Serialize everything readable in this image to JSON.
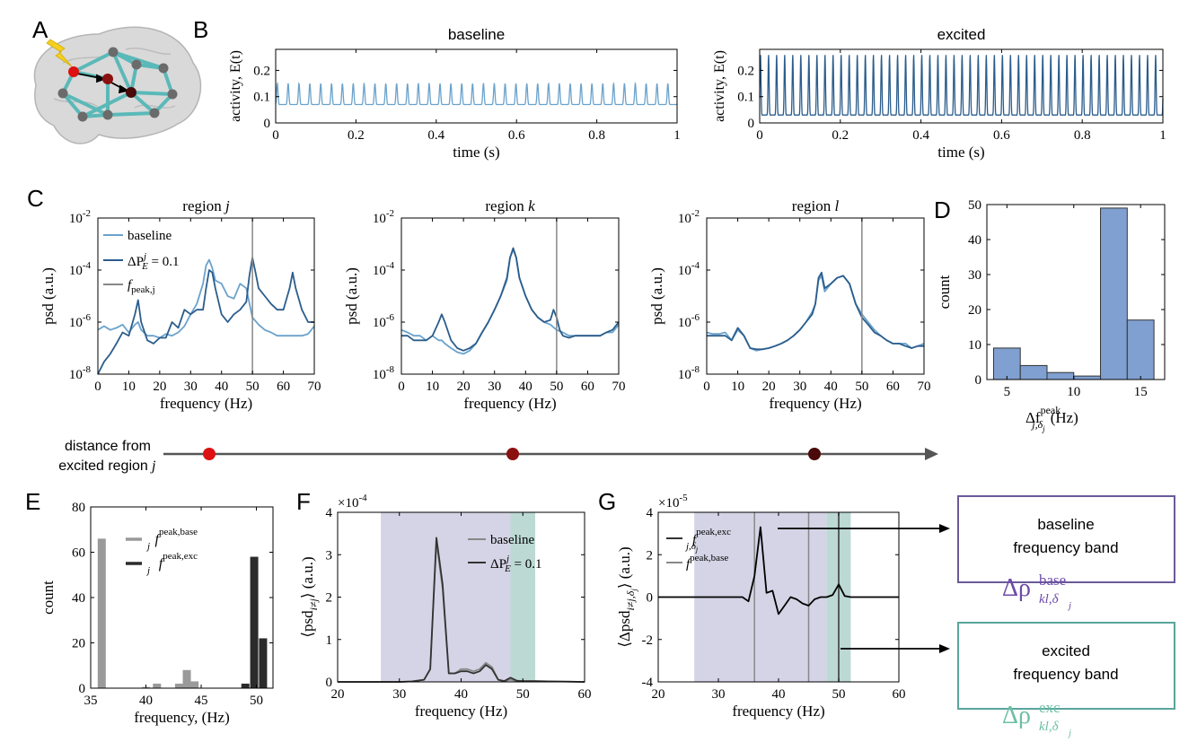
{
  "panel_letters": {
    "A": "A",
    "B": "B",
    "C": "C",
    "D": "D",
    "E": "E",
    "F": "F",
    "G": "G"
  },
  "colors": {
    "light_blue": "#6aa2cc",
    "dark_blue": "#2b5d8c",
    "gray_line": "#888888",
    "brain": "#d9d9d9",
    "network_edge": "#5ab9b8",
    "node_gray": "#6b6b6b",
    "node_red": "#dd1111",
    "node_darkred": "#8b1010",
    "node_darkest": "#4a0a0a",
    "bar_blue": "#7fa0d0",
    "bar_lightgray": "#9a9a9a",
    "bar_dark": "#2b2b2b",
    "band_base": "#d4d4e6",
    "band_exc": "#bcd9d4",
    "purple": "#6c4ba8",
    "teal": "#6dbfa4",
    "box_purple": "#6a5a98",
    "box_teal": "#5aa59c",
    "lightning": "#f5d021"
  },
  "axis_distance": {
    "label_line1": "distance from",
    "label_line2": "excited region",
    "label_j": "j"
  },
  "boxes": {
    "baseline": {
      "line1": "baseline",
      "line2": "frequency band",
      "symbol": "Δρ",
      "sup": "base",
      "sub": "kl,δ",
      "subsub": "j"
    },
    "excited": {
      "line1": "excited",
      "line2": "frequency band",
      "symbol": "Δρ",
      "sup": "exc",
      "sub": "kl,δ",
      "subsub": "j"
    }
  },
  "chart_data": [
    {
      "id": "B-baseline",
      "type": "line",
      "title": "baseline",
      "xlabel": "time (s)",
      "ylabel": "activity, E(t)",
      "xlim": [
        0,
        1
      ],
      "ylim": [
        0,
        0.28
      ],
      "xticks": [
        "0",
        "0.2",
        "0.4",
        "0.6",
        "0.8",
        "1"
      ],
      "yticks": [
        "0",
        "0.1",
        "0.2"
      ],
      "series": [
        {
          "oscillation": {
            "frequency_hz": 37,
            "min": 0.07,
            "max": 0.15
          }
        }
      ]
    },
    {
      "id": "B-excited",
      "type": "line",
      "title": "excited",
      "xlabel": "time (s)",
      "ylabel": "activity, E(t)",
      "xlim": [
        0,
        1
      ],
      "ylim": [
        0,
        0.28
      ],
      "xticks": [
        "0",
        "0.2",
        "0.4",
        "0.6",
        "0.8",
        "1"
      ],
      "yticks": [
        "0",
        "0.1",
        "0.2"
      ],
      "series": [
        {
          "oscillation": {
            "frequency_hz": 50,
            "min": 0.03,
            "max": 0.26
          }
        }
      ]
    },
    {
      "id": "C-j",
      "type": "line",
      "title": "region",
      "title_var": "j",
      "xlabel": "frequency (Hz)",
      "ylabel": "psd (a.u.)",
      "yscale": "log",
      "xlim": [
        0,
        70
      ],
      "ylim": [
        1e-08,
        0.01
      ],
      "xticks": [
        "0",
        "10",
        "20",
        "30",
        "40",
        "50",
        "60",
        "70"
      ],
      "yticks": [
        "-8",
        "-6",
        "-4",
        "-2"
      ],
      "vline": 50,
      "legend": {
        "placement": "top-left",
        "baseline": "baseline",
        "excited_main": "ΔP",
        "excited_sup": "j",
        "excited_sub": "E",
        "excited_val": "= 0.1",
        "peak_main": "f",
        "peak_sub": "peak,j"
      },
      "series": [
        {
          "name": "baseline",
          "x": [
            0,
            2,
            4,
            6,
            8,
            10,
            12,
            13,
            14,
            16,
            18,
            20,
            22,
            24,
            26,
            28,
            30,
            32,
            34,
            35,
            36,
            37,
            38,
            40,
            42,
            44,
            46,
            48,
            50,
            52,
            54,
            56,
            58,
            60,
            62,
            64,
            66,
            68,
            70
          ],
          "y": [
            5e-07,
            7e-07,
            5e-07,
            6e-07,
            8e-07,
            4e-07,
            8e-07,
            1e-06,
            5e-07,
            3e-07,
            3e-07,
            2.5e-07,
            3.5e-07,
            3e-07,
            4e-07,
            7e-07,
            2e-06,
            5e-06,
            3e-05,
            0.00015,
            0.00025,
            0.00012,
            4e-05,
            3e-05,
            1e-05,
            8e-06,
            3e-05,
            2e-05,
            1.5e-06,
            8e-07,
            5e-07,
            4e-07,
            3e-07,
            3e-07,
            3e-07,
            3e-07,
            3e-07,
            3.5e-07,
            7e-07
          ]
        },
        {
          "name": "excited",
          "x": [
            0,
            2,
            4,
            6,
            8,
            10,
            12,
            13,
            14,
            16,
            18,
            20,
            22,
            24,
            26,
            28,
            30,
            32,
            34,
            35,
            36,
            37,
            38,
            40,
            42,
            44,
            46,
            48,
            49,
            50,
            51,
            52,
            54,
            56,
            58,
            60,
            62,
            63,
            64,
            66,
            68,
            70
          ],
          "y": [
            1e-08,
            3e-08,
            6e-08,
            1.5e-07,
            4e-07,
            3e-07,
            2e-06,
            7e-06,
            1e-06,
            2e-07,
            1.5e-07,
            2.5e-07,
            2.5e-07,
            1e-06,
            6e-07,
            3e-06,
            2e-06,
            3e-06,
            3e-06,
            2e-05,
            0.0001,
            8e-05,
            2e-05,
            2e-06,
            1e-06,
            2e-06,
            3e-06,
            6e-06,
            6e-05,
            0.0003,
            8e-05,
            2e-05,
            1e-05,
            5e-06,
            3e-06,
            3e-06,
            2e-05,
            8e-05,
            2e-05,
            3e-06,
            1e-06,
            1e-06
          ]
        }
      ]
    },
    {
      "id": "C-k",
      "type": "line",
      "title": "region",
      "title_var": "k",
      "xlabel": "frequency (Hz)",
      "ylabel": "psd (a.u.)",
      "yscale": "log",
      "xlim": [
        0,
        70
      ],
      "ylim": [
        1e-08,
        0.01
      ],
      "xticks": [
        "0",
        "10",
        "20",
        "30",
        "40",
        "50",
        "60",
        "70"
      ],
      "yticks": [
        "-8",
        "-6",
        "-4",
        "-2"
      ],
      "vline": 50,
      "series": [
        {
          "name": "baseline",
          "x": [
            0,
            2,
            4,
            6,
            8,
            10,
            12,
            13,
            14,
            16,
            18,
            20,
            22,
            24,
            26,
            28,
            30,
            32,
            34,
            35,
            36,
            37,
            38,
            40,
            42,
            44,
            46,
            48,
            50,
            52,
            54,
            56,
            58,
            60,
            62,
            64,
            66,
            68,
            70
          ],
          "y": [
            5e-07,
            4e-07,
            3e-07,
            3e-07,
            2e-07,
            3e-07,
            2e-07,
            2e-07,
            1.5e-07,
            1e-07,
            7e-08,
            6e-08,
            8e-08,
            1.5e-07,
            4e-07,
            1e-06,
            3e-06,
            1e-05,
            4e-05,
            0.0003,
            0.0006,
            0.0003,
            5e-05,
            1e-05,
            3e-06,
            1.5e-06,
            1e-06,
            8e-07,
            5e-07,
            4e-07,
            3e-07,
            3e-07,
            3e-07,
            3e-07,
            3e-07,
            3e-07,
            4e-07,
            4e-07,
            8e-07
          ]
        },
        {
          "name": "excited",
          "x": [
            0,
            2,
            4,
            6,
            8,
            10,
            12,
            13,
            14,
            16,
            18,
            20,
            22,
            24,
            26,
            28,
            30,
            32,
            34,
            35,
            36,
            37,
            38,
            40,
            42,
            44,
            46,
            48,
            49,
            50,
            51,
            52,
            54,
            56,
            58,
            60,
            62,
            64,
            66,
            68,
            70
          ],
          "y": [
            3e-07,
            3e-07,
            2e-07,
            2e-07,
            2e-07,
            3e-07,
            1e-06,
            2e-06,
            1e-06,
            2e-07,
            1e-07,
            8e-08,
            1e-07,
            1.5e-07,
            4e-07,
            1e-06,
            3e-06,
            1e-05,
            5e-05,
            0.0003,
            0.0007,
            0.0003,
            5e-05,
            1e-05,
            3e-06,
            1.5e-06,
            1e-06,
            1.2e-06,
            3e-06,
            1.5e-06,
            5e-07,
            3e-07,
            2.5e-07,
            3e-07,
            3e-07,
            3e-07,
            3e-07,
            3e-07,
            4e-07,
            5e-07,
            1e-06
          ]
        }
      ]
    },
    {
      "id": "C-l",
      "type": "line",
      "title": "region",
      "title_var": "l",
      "xlabel": "frequency (Hz)",
      "ylabel": "psd (a.u.)",
      "yscale": "log",
      "xlim": [
        0,
        70
      ],
      "ylim": [
        1e-08,
        0.01
      ],
      "xticks": [
        "0",
        "10",
        "20",
        "30",
        "40",
        "50",
        "60",
        "70"
      ],
      "yticks": [
        "-8",
        "-6",
        "-4",
        "-2"
      ],
      "vline": 50,
      "series": [
        {
          "name": "baseline",
          "x": [
            0,
            2,
            4,
            6,
            8,
            10,
            12,
            14,
            16,
            18,
            20,
            22,
            24,
            26,
            28,
            30,
            32,
            34,
            35,
            36,
            37,
            38,
            40,
            42,
            44,
            46,
            48,
            50,
            52,
            54,
            56,
            58,
            60,
            62,
            64,
            66,
            68,
            70
          ],
          "y": [
            4e-07,
            3.5e-07,
            3.5e-07,
            4e-07,
            2e-07,
            5e-07,
            3e-07,
            1e-07,
            8e-08,
            9e-08,
            1e-07,
            1.2e-07,
            1.5e-07,
            2e-07,
            3e-07,
            5e-07,
            1e-06,
            2.5e-06,
            5e-06,
            4e-05,
            6e-05,
            1.5e-05,
            3e-05,
            5e-05,
            6e-05,
            3e-05,
            5e-06,
            2e-06,
            1e-06,
            5e-07,
            3e-07,
            2e-07,
            1.5e-07,
            1.5e-07,
            1.5e-07,
            1e-07,
            1.2e-07,
            1.5e-07
          ]
        },
        {
          "name": "excited",
          "x": [
            0,
            2,
            4,
            6,
            8,
            10,
            12,
            14,
            16,
            18,
            20,
            22,
            24,
            26,
            28,
            30,
            32,
            34,
            35,
            36,
            37,
            38,
            40,
            42,
            44,
            46,
            48,
            50,
            52,
            54,
            56,
            58,
            60,
            62,
            64,
            66,
            68,
            70
          ],
          "y": [
            3e-07,
            3e-07,
            3e-07,
            3e-07,
            2e-07,
            6e-07,
            3e-07,
            1e-07,
            9e-08,
            9e-08,
            1e-07,
            1.2e-07,
            1.5e-07,
            2e-07,
            3e-07,
            5e-07,
            1e-06,
            2e-06,
            5e-06,
            5e-05,
            8e-05,
            2e-05,
            3e-05,
            5e-05,
            6e-05,
            3e-05,
            5e-06,
            1.5e-06,
            8e-07,
            4e-07,
            3e-07,
            2e-07,
            1.5e-07,
            1.5e-07,
            1.2e-07,
            1e-07,
            1.2e-07,
            1.2e-07
          ]
        }
      ]
    },
    {
      "id": "D",
      "type": "bar",
      "xlabel": "Δf",
      "xlabel_sup": "peak",
      "xlabel_sub": "j,δ",
      "xlabel_subsub": "j",
      "xlabel_unit": "(Hz)",
      "ylabel": "count",
      "xlim": [
        3.5,
        16.8
      ],
      "ylim": [
        0,
        50
      ],
      "xticks": [
        "5",
        "10",
        "15"
      ],
      "yticks": [
        "0",
        "10",
        "20",
        "30",
        "40",
        "50"
      ],
      "bins": [
        [
          4,
          6
        ],
        [
          6,
          8
        ],
        [
          8,
          10
        ],
        [
          10,
          12
        ],
        [
          12,
          14
        ],
        [
          14,
          16
        ]
      ],
      "values": [
        9,
        4,
        2,
        1,
        49,
        17
      ]
    },
    {
      "id": "E",
      "type": "bar",
      "xlabel": "frequency, (Hz)",
      "ylabel": "count",
      "xlim": [
        35,
        51.5
      ],
      "ylim": [
        0,
        80
      ],
      "xticks": [
        "35",
        "40",
        "45",
        "50"
      ],
      "yticks": [
        "0",
        "20",
        "40",
        "60",
        "80"
      ],
      "legend": {
        "placement": "top-center",
        "base_main": "f",
        "base_sub": "j",
        "base_sup": "peak,base",
        "exc_main": "f",
        "exc_sub": "j",
        "exc_sup": "peak,exc"
      },
      "series": [
        {
          "name": "base",
          "x": [
            36,
            40,
            41,
            43,
            43.7,
            44.4,
            49
          ],
          "values": [
            66,
            0.5,
            2,
            2,
            8,
            3,
            0
          ]
        },
        {
          "name": "exc",
          "x": [
            49,
            49.8,
            50.6
          ],
          "values": [
            2,
            58,
            22
          ]
        }
      ]
    },
    {
      "id": "F",
      "type": "line",
      "xlabel": "frequency (Hz)",
      "ylabel": "⟨psd",
      "ylabel_sub": "i≠j",
      "ylabel_unit": "⟩ (a.u.)",
      "xlim": [
        20,
        60
      ],
      "ylim": [
        0,
        4
      ],
      "exponent": "×10",
      "exponent_power": "-4",
      "xticks": [
        "20",
        "30",
        "40",
        "50",
        "60"
      ],
      "yticks": [
        "0",
        "1",
        "2",
        "3",
        "4"
      ],
      "bands": {
        "base": [
          27,
          48
        ],
        "exc": [
          48,
          52
        ]
      },
      "legend": {
        "placement": "top-right",
        "baseline": "baseline",
        "excited_main": "ΔP",
        "excited_sup": "j",
        "excited_sub": "E",
        "excited_val": "= 0.1"
      },
      "series": [
        {
          "name": "baseline",
          "x": [
            20,
            25,
            30,
            32,
            34,
            35,
            36,
            37,
            38,
            39,
            40,
            41,
            42,
            43,
            44,
            45,
            46,
            47,
            48,
            49,
            50,
            52,
            55,
            60
          ],
          "y": [
            0,
            0,
            0,
            0.01,
            0.05,
            0.3,
            3.3,
            2.2,
            0.2,
            0.2,
            0.3,
            0.3,
            0.25,
            0.3,
            0.45,
            0.35,
            0.05,
            0.02,
            0.05,
            0.02,
            0.02,
            0.02,
            0.01,
            0
          ]
        },
        {
          "name": "excited",
          "x": [
            20,
            25,
            30,
            32,
            34,
            35,
            36,
            37,
            38,
            39,
            40,
            41,
            42,
            43,
            44,
            45,
            46,
            47,
            48,
            49,
            50,
            52,
            55,
            60
          ],
          "y": [
            0,
            0,
            0,
            0.01,
            0.05,
            0.3,
            3.4,
            2.3,
            0.2,
            0.2,
            0.25,
            0.25,
            0.2,
            0.25,
            0.4,
            0.3,
            0.05,
            0.02,
            0.1,
            0.03,
            0.02,
            0.02,
            0.01,
            0
          ]
        }
      ]
    },
    {
      "id": "G",
      "type": "line",
      "xlabel": "frequency (Hz)",
      "ylabel": "⟨Δpsd",
      "ylabel_sub": "i≠j,δ",
      "ylabel_subsub": "j",
      "ylabel_unit": "⟩ (a.u.)",
      "xlim": [
        20,
        60
      ],
      "ylim": [
        -4,
        4
      ],
      "exponent": "×10",
      "exponent_power": "-5",
      "xticks": [
        "20",
        "30",
        "40",
        "50",
        "60"
      ],
      "yticks": [
        "-4",
        "-2",
        "0",
        "2",
        "4"
      ],
      "bands": {
        "base": [
          26,
          48
        ],
        "exc": [
          48,
          52
        ]
      },
      "vlines_base": [
        36,
        45
      ],
      "vline_exc": 50,
      "legend": {
        "placement": "top-left",
        "exc_main": "f",
        "exc_sub": "j,δ",
        "exc_subsub": "j",
        "exc_sup": "peak,exc",
        "base_main": "f",
        "base_sup": "peak,base"
      },
      "series": [
        {
          "name": "delta",
          "x": [
            20,
            25,
            30,
            34,
            35,
            36,
            37,
            38,
            39,
            40,
            41,
            42,
            43,
            44,
            45,
            46,
            47,
            48,
            49,
            50,
            51,
            52,
            55,
            60
          ],
          "y": [
            0,
            0,
            0,
            0,
            -0.2,
            1.0,
            3.3,
            0.2,
            0.3,
            -0.8,
            -0.4,
            0,
            -0.1,
            -0.3,
            -0.4,
            -0.1,
            0,
            0,
            0.1,
            0.6,
            0.05,
            0,
            0,
            0
          ]
        }
      ]
    }
  ]
}
